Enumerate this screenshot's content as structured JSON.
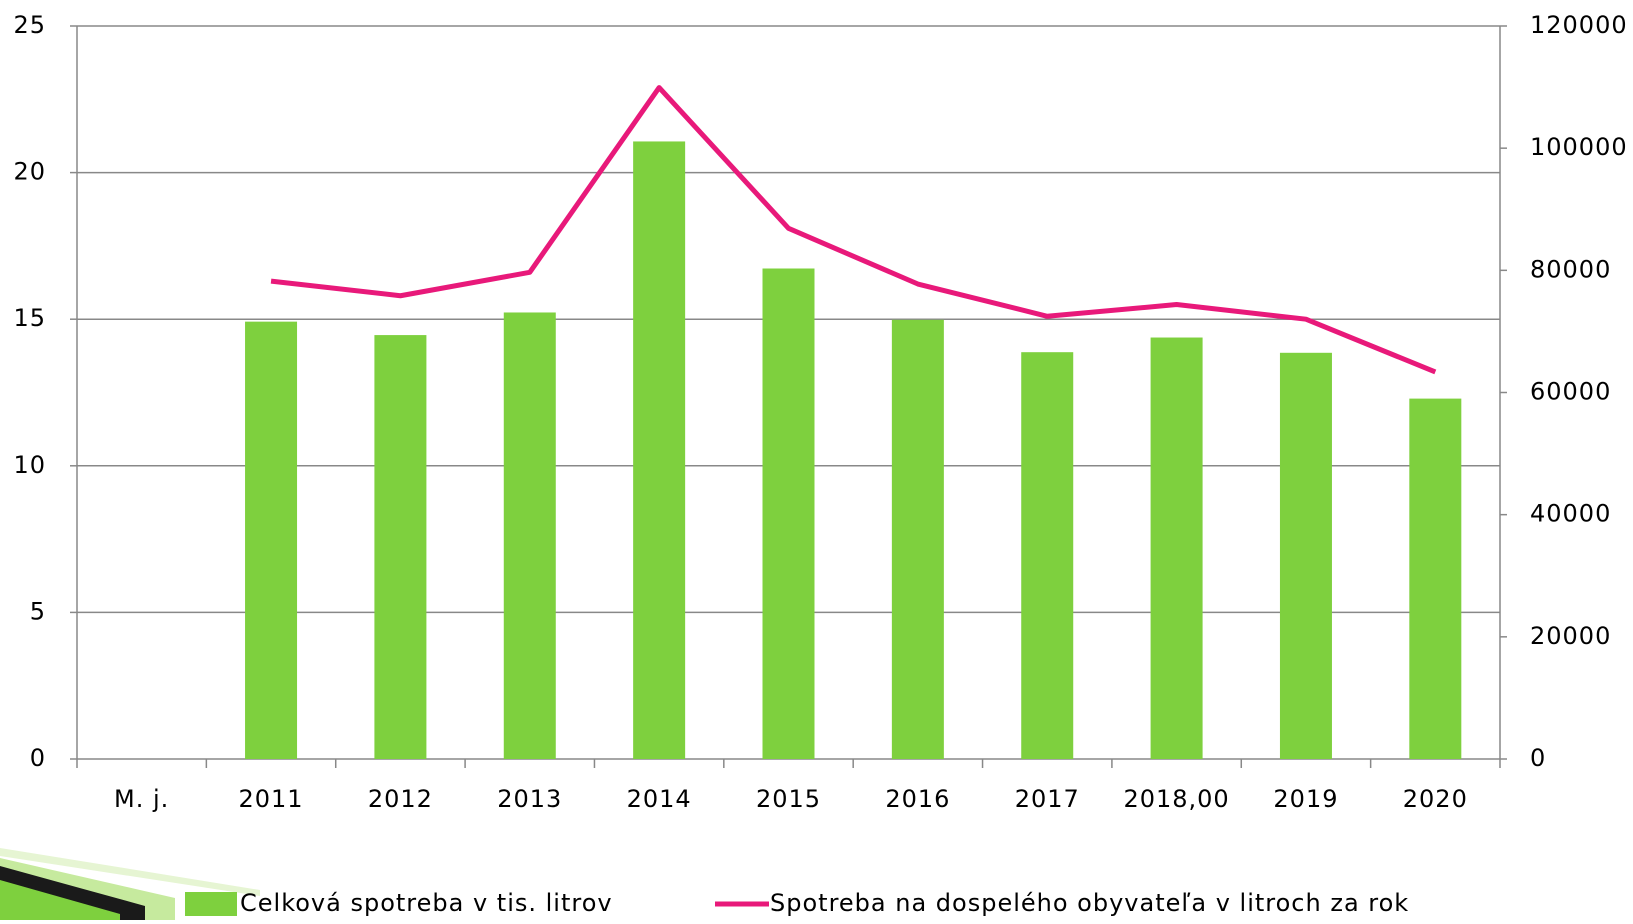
{
  "chart_data": {
    "type": "bar",
    "categories": [
      "M. j.",
      "2011",
      "2012",
      "2013",
      "2014",
      "2015",
      "2016",
      "2017",
      "2018,00",
      "2019",
      "2020"
    ],
    "series": [
      {
        "name": "Celková spotreba v tis. litrov",
        "type": "bar",
        "axis": "y2",
        "color": "#7ed03e",
        "values": [
          null,
          71600,
          69400,
          73100,
          101100,
          80300,
          71900,
          66600,
          69000,
          66500,
          59000
        ]
      },
      {
        "name": "Spotreba na dospelého obyvateľa v litroch za rok",
        "type": "line",
        "axis": "y",
        "color": "#e8197a",
        "values": [
          null,
          16.3,
          15.8,
          16.6,
          22.9,
          18.1,
          16.2,
          15.1,
          15.5,
          15.0,
          13.2
        ]
      }
    ],
    "ylim": [
      0,
      25
    ],
    "yticks": [
      0,
      5,
      10,
      15,
      20,
      25
    ],
    "y2lim": [
      0,
      120000
    ],
    "y2ticks": [
      0,
      20000,
      40000,
      60000,
      80000,
      100000,
      120000
    ],
    "grid": true,
    "legend": "bottom"
  }
}
